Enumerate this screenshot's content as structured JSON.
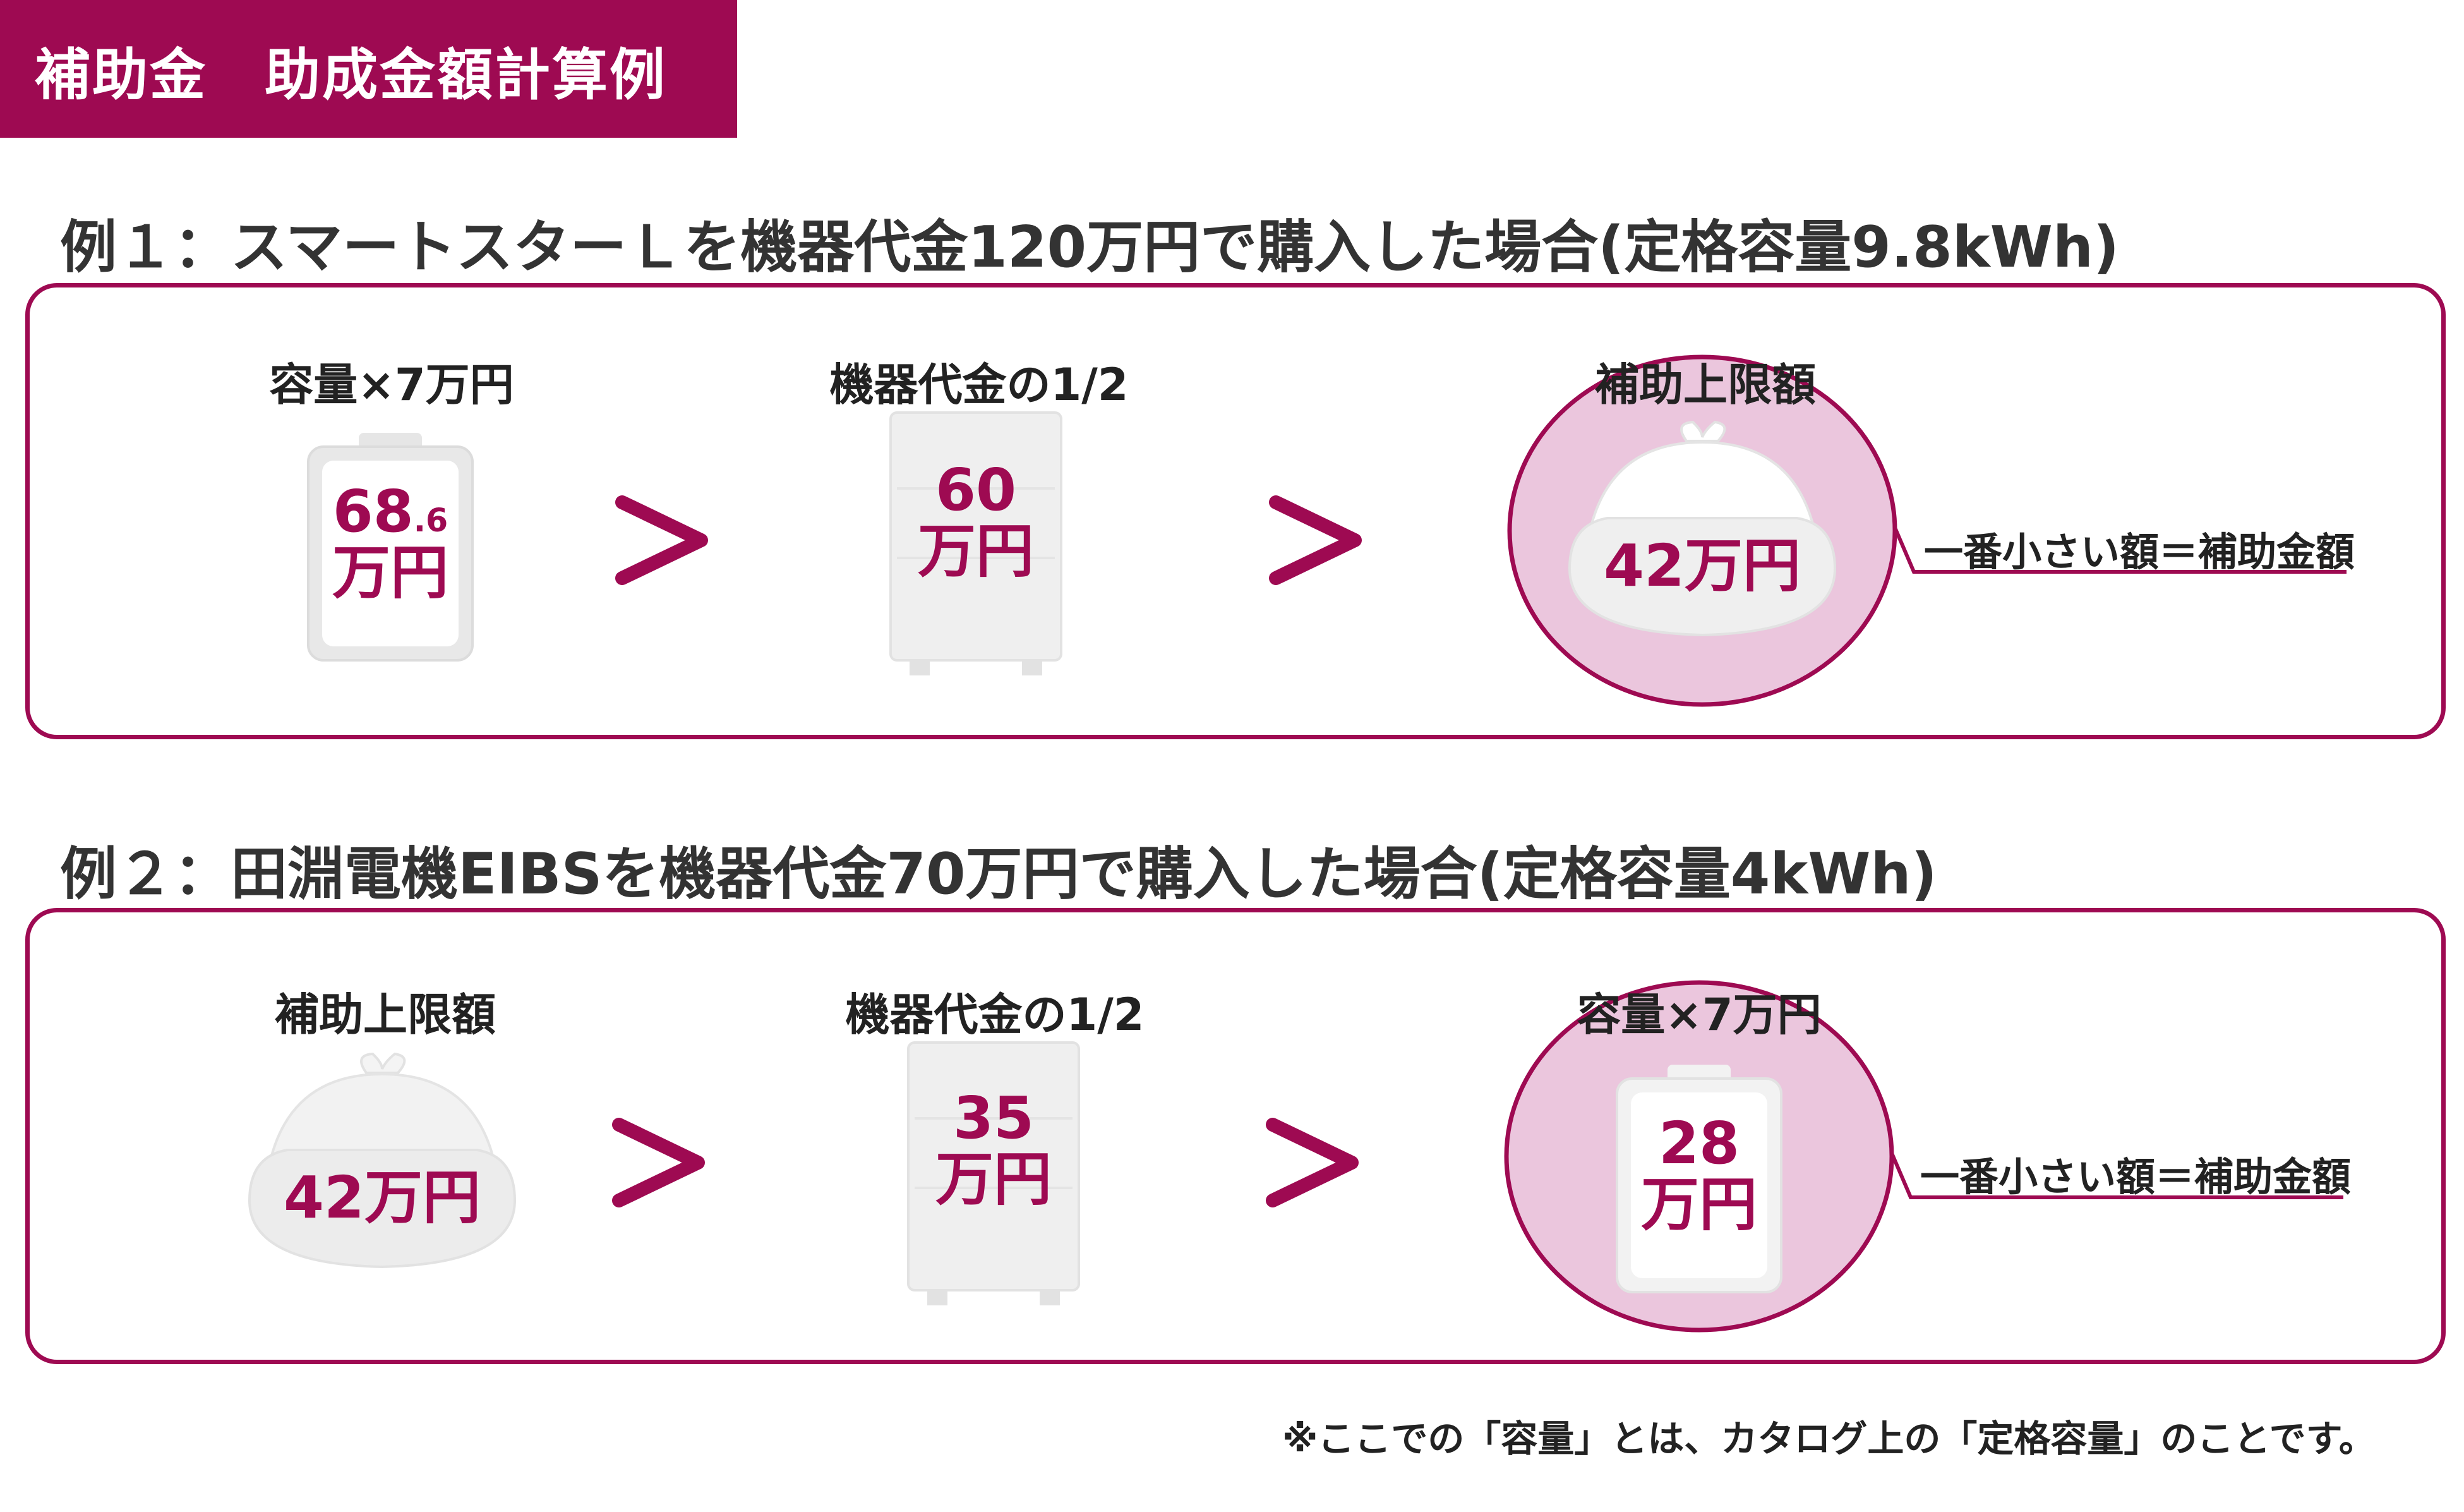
{
  "header": {
    "title": "補助金　助成金額計算例"
  },
  "examples": [
    {
      "title": "例１：スマートスターＬを機器代金120万円で購入した場合(定格容量9.8kWh)",
      "steps": [
        {
          "label": "容量×7万円",
          "icon": "battery-icon",
          "value_main": "68",
          "value_small": ".6",
          "value_unit": "万円"
        },
        {
          "label": "機器代金の1/2",
          "icon": "storage-unit-icon",
          "value_main": "60",
          "value_unit": "万円"
        },
        {
          "label": "補助上限額",
          "icon": "coin-purse-icon",
          "value": "42万円",
          "highlight": true
        }
      ],
      "comparator": ">",
      "note": "一番小さい額＝補助金額"
    },
    {
      "title": "例２：田淵電機EIBSを機器代金70万円で購入した場合(定格容量4kWh)",
      "steps": [
        {
          "label": "補助上限額",
          "icon": "coin-purse-icon",
          "value": "42万円"
        },
        {
          "label": "機器代金の1/2",
          "icon": "storage-unit-icon",
          "value_main": "35",
          "value_unit": "万円"
        },
        {
          "label": "容量×7万円",
          "icon": "battery-icon",
          "value_main": "28",
          "value_unit": "万円",
          "highlight": true
        }
      ],
      "comparator": ">",
      "note": "一番小さい額＝補助金額"
    }
  ],
  "footnote": "※ここでの「容量」とは、カタログ上の「定格容量」のことです。",
  "colors": {
    "accent": "#9e0a52",
    "highlight_fill": "#ebc6dd",
    "icon_fill": "#efefef",
    "icon_stroke": "#dcdcdc"
  }
}
